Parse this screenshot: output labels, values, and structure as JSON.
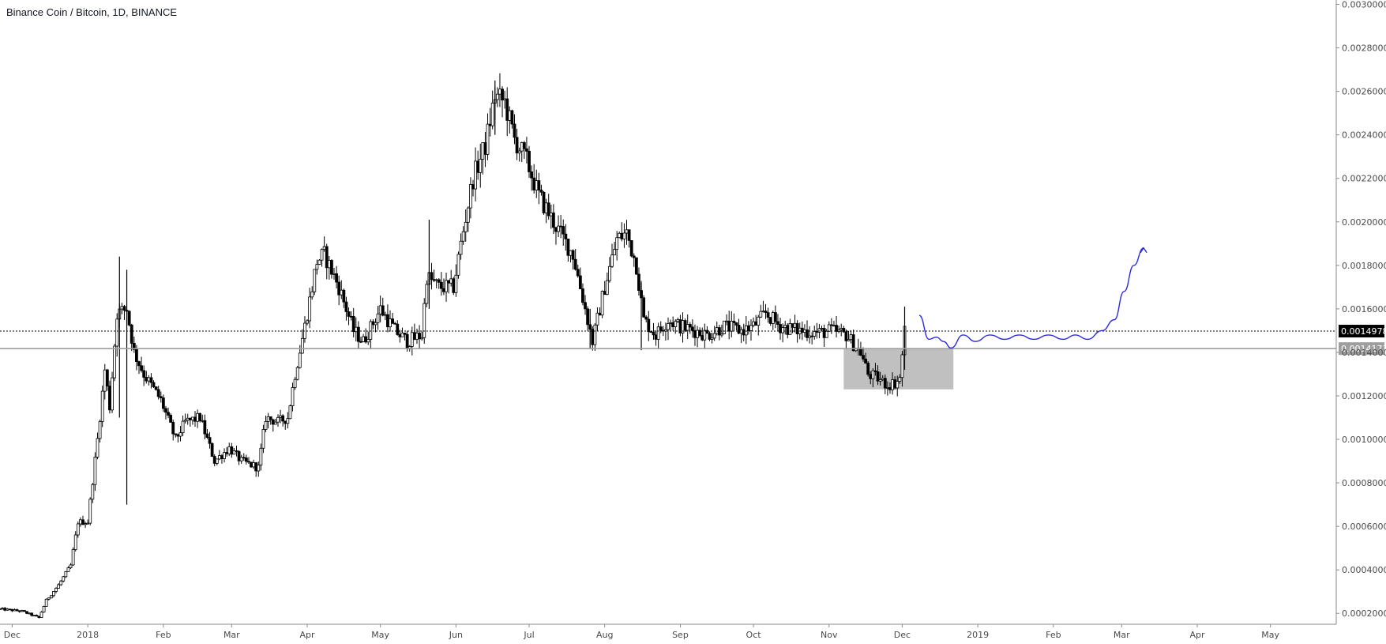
{
  "chart_data": {
    "type": "candlestick",
    "title": "Binance Coin / Bitcoin, 1D, BINANCE",
    "y_axis": {
      "range": [
        0.00015,
        0.00302
      ],
      "ticks": [
        "0.0002000",
        "0.0004000",
        "0.0006000",
        "0.0008000",
        "0.0010000",
        "0.0012000",
        "0.0014000",
        "0.0016000",
        "0.0018000",
        "0.0020000",
        "0.0022000",
        "0.0024000",
        "0.0026000",
        "0.0028000",
        "0.0030000"
      ],
      "position": "right"
    },
    "x_axis": {
      "range": [
        "2017-11-26",
        "2019-05-28"
      ],
      "ticks": [
        {
          "label": "Dec",
          "date": "2017-12-01"
        },
        {
          "label": "2018",
          "date": "2018-01-01"
        },
        {
          "label": "Feb",
          "date": "2018-02-01"
        },
        {
          "label": "Mar",
          "date": "2018-03-01"
        },
        {
          "label": "Apr",
          "date": "2018-04-01"
        },
        {
          "label": "May",
          "date": "2018-05-01"
        },
        {
          "label": "Jun",
          "date": "2018-06-01"
        },
        {
          "label": "Jul",
          "date": "2018-07-01"
        },
        {
          "label": "Aug",
          "date": "2018-08-01"
        },
        {
          "label": "Sep",
          "date": "2018-09-01"
        },
        {
          "label": "Oct",
          "date": "2018-10-01"
        },
        {
          "label": "Nov",
          "date": "2018-11-01"
        },
        {
          "label": "Dec",
          "date": "2018-12-01"
        },
        {
          "label": "2019",
          "date": "2019-01-01"
        },
        {
          "label": "Feb",
          "date": "2019-02-01"
        },
        {
          "label": "Mar",
          "date": "2019-03-01"
        },
        {
          "label": "Apr",
          "date": "2019-04-01"
        },
        {
          "label": "May",
          "date": "2019-05-01"
        }
      ]
    },
    "price_path": [
      [
        "2017-11-26",
        0.00022
      ],
      [
        "2017-12-05",
        0.00021
      ],
      [
        "2017-12-12",
        0.00018
      ],
      [
        "2017-12-15",
        0.00026
      ],
      [
        "2017-12-20",
        0.00033
      ],
      [
        "2017-12-25",
        0.00042
      ],
      [
        "2017-12-28",
        0.00062
      ],
      [
        "2018-01-01",
        0.00062
      ],
      [
        "2018-01-05",
        0.001
      ],
      [
        "2018-01-08",
        0.00132
      ],
      [
        "2018-01-10",
        0.00115
      ],
      [
        "2018-01-13",
        0.00158
      ],
      [
        "2018-01-17",
        0.0016
      ],
      [
        "2018-01-20",
        0.0014
      ],
      [
        "2018-01-24",
        0.0013
      ],
      [
        "2018-01-31",
        0.00118
      ],
      [
        "2018-02-06",
        0.001
      ],
      [
        "2018-02-10",
        0.00108
      ],
      [
        "2018-02-16",
        0.0011
      ],
      [
        "2018-02-22",
        0.0009
      ],
      [
        "2018-02-28",
        0.00096
      ],
      [
        "2018-03-05",
        0.0009
      ],
      [
        "2018-03-12",
        0.00087
      ],
      [
        "2018-03-15",
        0.0011
      ],
      [
        "2018-03-20",
        0.00108
      ],
      [
        "2018-03-24",
        0.0011
      ],
      [
        "2018-03-27",
        0.0013
      ],
      [
        "2018-03-31",
        0.00152
      ],
      [
        "2018-04-05",
        0.00182
      ],
      [
        "2018-04-08",
        0.00185
      ],
      [
        "2018-04-14",
        0.0017
      ],
      [
        "2018-04-20",
        0.0015
      ],
      [
        "2018-04-24",
        0.00145
      ],
      [
        "2018-05-01",
        0.0016
      ],
      [
        "2018-05-07",
        0.0015
      ],
      [
        "2018-05-12",
        0.00145
      ],
      [
        "2018-05-18",
        0.00148
      ],
      [
        "2018-05-20",
        0.00175
      ],
      [
        "2018-05-25",
        0.0017
      ],
      [
        "2018-05-31",
        0.0017
      ],
      [
        "2018-06-03",
        0.0019
      ],
      [
        "2018-06-08",
        0.0022
      ],
      [
        "2018-06-13",
        0.00235
      ],
      [
        "2018-06-17",
        0.00258
      ],
      [
        "2018-06-21",
        0.00255
      ],
      [
        "2018-06-25",
        0.00238
      ],
      [
        "2018-06-30",
        0.00228
      ],
      [
        "2018-07-05",
        0.00212
      ],
      [
        "2018-07-12",
        0.00198
      ],
      [
        "2018-07-19",
        0.00185
      ],
      [
        "2018-07-24",
        0.0016
      ],
      [
        "2018-07-27",
        0.00145
      ],
      [
        "2018-08-01",
        0.0017
      ],
      [
        "2018-08-06",
        0.00192
      ],
      [
        "2018-08-10",
        0.00195
      ],
      [
        "2018-08-14",
        0.0018
      ],
      [
        "2018-08-17",
        0.00155
      ],
      [
        "2018-08-22",
        0.00148
      ],
      [
        "2018-08-27",
        0.00155
      ],
      [
        "2018-09-01",
        0.00152
      ],
      [
        "2018-09-07",
        0.0015
      ],
      [
        "2018-09-12",
        0.00148
      ],
      [
        "2018-09-19",
        0.00152
      ],
      [
        "2018-09-26",
        0.0015
      ],
      [
        "2018-10-01",
        0.00152
      ],
      [
        "2018-10-06",
        0.00158
      ],
      [
        "2018-10-12",
        0.00152
      ],
      [
        "2018-10-20",
        0.0015
      ],
      [
        "2018-10-28",
        0.00149
      ],
      [
        "2018-11-02",
        0.0015
      ],
      [
        "2018-11-08",
        0.00148
      ],
      [
        "2018-11-14",
        0.0014
      ],
      [
        "2018-11-17",
        0.0013
      ],
      [
        "2018-11-21",
        0.00128
      ],
      [
        "2018-11-25",
        0.00125
      ],
      [
        "2018-11-28",
        0.00126
      ],
      [
        "2018-11-30",
        0.00128
      ],
      [
        "2018-12-02",
        0.0015
      ]
    ],
    "spikes": [
      {
        "date": "2018-01-14",
        "high": 0.00184,
        "low": 0.0011
      },
      {
        "date": "2018-01-17",
        "high": 0.00178,
        "low": 0.0007
      },
      {
        "date": "2018-05-21",
        "high": 0.00201,
        "low": 0.0016
      },
      {
        "date": "2018-07-26",
        "high": 0.0016,
        "low": 0.00142
      },
      {
        "date": "2018-08-16",
        "high": 0.00172,
        "low": 0.00141
      },
      {
        "date": "2018-06-17",
        "high": 0.00265,
        "low": 0.0024
      },
      {
        "date": "2018-12-02",
        "high": 0.00161,
        "low": 0.00132
      }
    ],
    "horizontal_lines": [
      {
        "value": 0.0014978,
        "style": "dotted",
        "color": "#000000",
        "label": "0.0014978",
        "label_bg": "#000000"
      },
      {
        "value": 0.0014173,
        "style": "solid",
        "color": "#9e9e9e",
        "label": "0.0014173",
        "label_bg": "#9e9e9e"
      }
    ],
    "zone": {
      "x_start": "2018-11-07",
      "x_end": "2018-12-22",
      "y_low": 0.00123,
      "y_high": 0.0014173,
      "color": "#bdbdbd"
    },
    "projection": {
      "color": "#2b2bdc",
      "points": [
        [
          "2018-12-08",
          0.00157
        ],
        [
          "2018-12-12",
          0.00146
        ],
        [
          "2018-12-15",
          0.00147
        ],
        [
          "2018-12-18",
          0.00145
        ],
        [
          "2018-12-21",
          0.00142
        ],
        [
          "2018-12-26",
          0.00148
        ],
        [
          "2018-12-31",
          0.00145
        ],
        [
          "2019-01-06",
          0.00148
        ],
        [
          "2019-01-12",
          0.00146
        ],
        [
          "2019-01-18",
          0.00148
        ],
        [
          "2019-01-24",
          0.00146
        ],
        [
          "2019-01-30",
          0.00148
        ],
        [
          "2019-02-05",
          0.00146
        ],
        [
          "2019-02-10",
          0.00148
        ],
        [
          "2019-02-15",
          0.00146
        ],
        [
          "2019-02-21",
          0.0015
        ],
        [
          "2019-02-26",
          0.00155
        ],
        [
          "2019-03-02",
          0.00168
        ],
        [
          "2019-03-06",
          0.0018
        ],
        [
          "2019-03-10",
          0.00188
        ]
      ]
    },
    "colors": {
      "candle": "#000000",
      "axis": "#8a8a8a",
      "text": "#131722"
    }
  }
}
